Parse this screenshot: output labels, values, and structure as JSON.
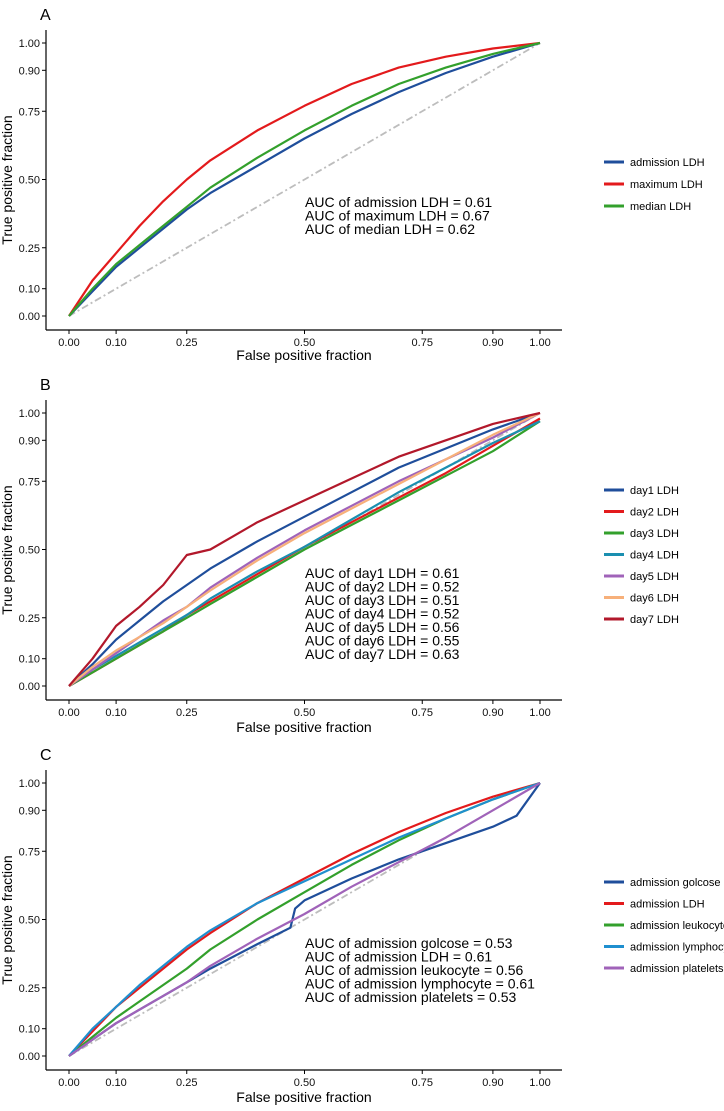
{
  "colors": {
    "axis": "#000000",
    "reference": "#bdbdbd"
  },
  "chart_data": [
    {
      "panel": "A",
      "type": "line",
      "xlabel": "False positive fraction",
      "ylabel": "True positive fraction",
      "xticks": [
        "0.00",
        "0.10",
        "0.25",
        "0.50",
        "0.75",
        "0.90",
        "1.00"
      ],
      "yticks": [
        "0.00",
        "0.10",
        "0.25",
        "0.50",
        "0.75",
        "0.90",
        "1.00"
      ],
      "xlim": [
        0,
        1
      ],
      "ylim": [
        0,
        1
      ],
      "grid": false,
      "legend_position": "right",
      "reference_line": "dashed diagonal",
      "series": [
        {
          "name": "admission LDH",
          "color": "#1f4e9b",
          "x": [
            0,
            0.05,
            0.1,
            0.15,
            0.2,
            0.25,
            0.3,
            0.4,
            0.5,
            0.6,
            0.7,
            0.8,
            0.9,
            1
          ],
          "y": [
            0,
            0.09,
            0.18,
            0.25,
            0.32,
            0.39,
            0.45,
            0.55,
            0.65,
            0.74,
            0.82,
            0.89,
            0.95,
            1
          ]
        },
        {
          "name": "maximum LDH",
          "color": "#e31a1c",
          "x": [
            0,
            0.05,
            0.1,
            0.15,
            0.2,
            0.25,
            0.3,
            0.4,
            0.5,
            0.6,
            0.7,
            0.8,
            0.9,
            1
          ],
          "y": [
            0,
            0.13,
            0.23,
            0.33,
            0.42,
            0.5,
            0.57,
            0.68,
            0.77,
            0.85,
            0.91,
            0.95,
            0.98,
            1
          ]
        },
        {
          "name": "median LDH",
          "color": "#33a02c",
          "x": [
            0,
            0.05,
            0.1,
            0.15,
            0.2,
            0.25,
            0.3,
            0.4,
            0.5,
            0.6,
            0.7,
            0.8,
            0.9,
            1
          ],
          "y": [
            0,
            0.1,
            0.19,
            0.26,
            0.33,
            0.4,
            0.47,
            0.58,
            0.68,
            0.77,
            0.85,
            0.91,
            0.96,
            1
          ]
        }
      ],
      "annotations": [
        "AUC of  admission LDH  = 0.61",
        "AUC of  maximum LDH  = 0.67",
        "AUC of  median LDH  = 0.62"
      ]
    },
    {
      "panel": "B",
      "type": "line",
      "xlabel": "False positive fraction",
      "ylabel": "True positive fraction",
      "xticks": [
        "0.00",
        "0.10",
        "0.25",
        "0.50",
        "0.75",
        "0.90",
        "1.00"
      ],
      "yticks": [
        "0.00",
        "0.10",
        "0.25",
        "0.50",
        "0.75",
        "0.90",
        "1.00"
      ],
      "xlim": [
        0,
        1
      ],
      "ylim": [
        0,
        1
      ],
      "grid": false,
      "legend_position": "right",
      "reference_line": "dashed diagonal",
      "series": [
        {
          "name": "day1 LDH",
          "color": "#1f4e9b",
          "x": [
            0,
            0.05,
            0.1,
            0.15,
            0.2,
            0.25,
            0.3,
            0.4,
            0.5,
            0.6,
            0.7,
            0.8,
            0.9,
            1
          ],
          "y": [
            0,
            0.08,
            0.17,
            0.24,
            0.31,
            0.37,
            0.43,
            0.53,
            0.62,
            0.71,
            0.8,
            0.87,
            0.94,
            1
          ]
        },
        {
          "name": "day2 LDH",
          "color": "#e31a1c",
          "x": [
            0,
            0.05,
            0.1,
            0.15,
            0.2,
            0.25,
            0.3,
            0.4,
            0.5,
            0.6,
            0.7,
            0.8,
            0.9,
            1
          ],
          "y": [
            0,
            0.05,
            0.1,
            0.15,
            0.2,
            0.26,
            0.31,
            0.41,
            0.51,
            0.6,
            0.69,
            0.78,
            0.88,
            0.98
          ]
        },
        {
          "name": "day3 LDH",
          "color": "#33a02c",
          "x": [
            0,
            0.05,
            0.1,
            0.15,
            0.2,
            0.25,
            0.3,
            0.4,
            0.5,
            0.6,
            0.7,
            0.8,
            0.9,
            1
          ],
          "y": [
            0,
            0.05,
            0.1,
            0.15,
            0.2,
            0.25,
            0.3,
            0.4,
            0.5,
            0.59,
            0.68,
            0.77,
            0.86,
            0.97
          ]
        },
        {
          "name": "day4 LDH",
          "color": "#1a8fb0",
          "x": [
            0,
            0.05,
            0.1,
            0.15,
            0.2,
            0.25,
            0.3,
            0.4,
            0.5,
            0.6,
            0.7,
            0.8,
            0.9,
            1
          ],
          "y": [
            0,
            0.06,
            0.11,
            0.16,
            0.21,
            0.26,
            0.32,
            0.42,
            0.51,
            0.61,
            0.71,
            0.8,
            0.89,
            0.97
          ]
        },
        {
          "name": "day5 LDH",
          "color": "#a063b9",
          "x": [
            0,
            0.05,
            0.1,
            0.15,
            0.2,
            0.25,
            0.3,
            0.4,
            0.5,
            0.6,
            0.7,
            0.8,
            0.9,
            1
          ],
          "y": [
            0,
            0.06,
            0.12,
            0.18,
            0.24,
            0.29,
            0.36,
            0.47,
            0.57,
            0.66,
            0.75,
            0.83,
            0.91,
            1
          ]
        },
        {
          "name": "day6 LDH",
          "color": "#f7b07a",
          "x": [
            0,
            0.05,
            0.1,
            0.15,
            0.2,
            0.25,
            0.3,
            0.4,
            0.5,
            0.6,
            0.7,
            0.8,
            0.9,
            1
          ],
          "y": [
            0,
            0.07,
            0.13,
            0.18,
            0.23,
            0.29,
            0.35,
            0.46,
            0.56,
            0.65,
            0.74,
            0.83,
            0.92,
            1
          ]
        },
        {
          "name": "day7 LDH",
          "color": "#b2182b",
          "x": [
            0,
            0.05,
            0.1,
            0.15,
            0.2,
            0.25,
            0.3,
            0.35,
            0.4,
            0.5,
            0.6,
            0.7,
            0.8,
            0.9,
            1
          ],
          "y": [
            0,
            0.1,
            0.22,
            0.29,
            0.37,
            0.48,
            0.5,
            0.55,
            0.6,
            0.68,
            0.76,
            0.84,
            0.9,
            0.96,
            1
          ]
        }
      ],
      "annotations": [
        "AUC of  day1 LDH  = 0.61",
        "AUC of  day2 LDH  = 0.52",
        "AUC of  day3 LDH  = 0.51",
        "AUC of  day4 LDH  = 0.52",
        "AUC of  day5 LDH  = 0.56",
        "AUC of  day6 LDH  = 0.55",
        "AUC of  day7 LDH  = 0.63"
      ]
    },
    {
      "panel": "C",
      "type": "line",
      "xlabel": "False positive fraction",
      "ylabel": "True positive fraction",
      "xticks": [
        "0.00",
        "0.10",
        "0.25",
        "0.50",
        "0.75",
        "0.90",
        "1.00"
      ],
      "yticks": [
        "0.00",
        "0.10",
        "0.25",
        "0.50",
        "0.75",
        "0.90",
        "1.00"
      ],
      "xlim": [
        0,
        1
      ],
      "ylim": [
        0,
        1
      ],
      "grid": false,
      "legend_position": "right",
      "reference_line": "dashed diagonal",
      "series": [
        {
          "name": "admission golcose",
          "color": "#1f4e9b",
          "x": [
            0,
            0.05,
            0.1,
            0.15,
            0.2,
            0.25,
            0.3,
            0.4,
            0.47,
            0.48,
            0.5,
            0.6,
            0.7,
            0.8,
            0.9,
            0.95,
            1
          ],
          "y": [
            0,
            0.06,
            0.12,
            0.17,
            0.22,
            0.27,
            0.32,
            0.41,
            0.47,
            0.54,
            0.57,
            0.65,
            0.72,
            0.78,
            0.84,
            0.88,
            1
          ]
        },
        {
          "name": "admission LDH",
          "color": "#e31a1c",
          "x": [
            0,
            0.05,
            0.1,
            0.15,
            0.2,
            0.25,
            0.3,
            0.4,
            0.5,
            0.6,
            0.7,
            0.8,
            0.9,
            1
          ],
          "y": [
            0,
            0.09,
            0.18,
            0.25,
            0.32,
            0.39,
            0.45,
            0.56,
            0.65,
            0.74,
            0.82,
            0.89,
            0.95,
            1
          ]
        },
        {
          "name": "admission leukocyte",
          "color": "#33a02c",
          "x": [
            0,
            0.05,
            0.1,
            0.15,
            0.2,
            0.25,
            0.3,
            0.4,
            0.5,
            0.6,
            0.7,
            0.8,
            0.9,
            1
          ],
          "y": [
            0,
            0.07,
            0.14,
            0.2,
            0.26,
            0.32,
            0.39,
            0.5,
            0.6,
            0.7,
            0.79,
            0.87,
            0.94,
            1
          ]
        },
        {
          "name": "admission lymphocyte",
          "color": "#1f8fcf",
          "x": [
            0,
            0.05,
            0.1,
            0.15,
            0.2,
            0.25,
            0.3,
            0.4,
            0.5,
            0.6,
            0.7,
            0.8,
            0.9,
            1
          ],
          "y": [
            0,
            0.1,
            0.18,
            0.26,
            0.33,
            0.4,
            0.46,
            0.56,
            0.64,
            0.72,
            0.8,
            0.87,
            0.94,
            1
          ]
        },
        {
          "name": "admission platelets",
          "color": "#a063b9",
          "x": [
            0,
            0.05,
            0.1,
            0.15,
            0.2,
            0.25,
            0.3,
            0.4,
            0.5,
            0.6,
            0.7,
            0.8,
            0.9,
            1
          ],
          "y": [
            0,
            0.06,
            0.12,
            0.17,
            0.22,
            0.27,
            0.33,
            0.43,
            0.52,
            0.62,
            0.71,
            0.8,
            0.9,
            1
          ]
        }
      ],
      "annotations": [
        "AUC of  admission golcose  = 0.53",
        "AUC of  admission LDH  = 0.61",
        "AUC of  admission leukocyte  = 0.56",
        "AUC of  admission lymphocyte  = 0.61",
        "AUC of  admission platelets  = 0.53"
      ]
    }
  ]
}
